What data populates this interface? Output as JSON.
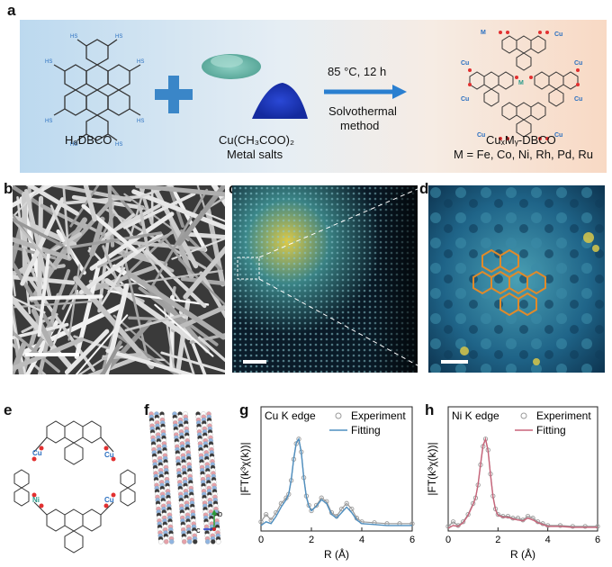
{
  "panels": {
    "a": {
      "label": "a",
      "reactant_name": "H₈DBCO",
      "metal_salt_1": "Cu(CH₃COO)₂",
      "metal_salt_2": "Metal salts",
      "condition_1": "85 °C,  12 h",
      "condition_2": "Solvothermal",
      "condition_3": "method",
      "product_name": "CuₓMᵧ-DBCO",
      "metals": "M = Fe, Co, Ni, Rh, Pd, Ru",
      "cu_label": "Cu",
      "m_label": "M",
      "hs_label": "HS"
    },
    "b": {
      "label": "b"
    },
    "c": {
      "label": "c"
    },
    "d": {
      "label": "d"
    },
    "e": {
      "label": "e",
      "cu_label": "Cu",
      "ni_label": "Ni"
    },
    "f": {
      "label": "f",
      "axis_b": "b",
      "axis_c": "c"
    },
    "g": {
      "label": "g"
    },
    "h": {
      "label": "h"
    }
  },
  "colors": {
    "cu_fit": "#4f8fc0",
    "ni_fit": "#c8647a",
    "experiment": "#9a9a9a",
    "arrow": "#2a7fd0",
    "plus": "#3a86c8"
  },
  "chart_data": [
    {
      "panel": "g",
      "type": "line",
      "title": "Cu K edge",
      "xlabel": "R (Å)",
      "ylabel": "|FT(k³χ(k))|",
      "xlim": [
        0,
        6
      ],
      "xticks": [
        0,
        2,
        4,
        6
      ],
      "legend": "top-right",
      "series": [
        {
          "name": "Experiment",
          "x": [
            0.0,
            0.2,
            0.4,
            0.6,
            0.8,
            1.0,
            1.1,
            1.2,
            1.3,
            1.4,
            1.5,
            1.6,
            1.7,
            1.8,
            1.9,
            2.0,
            2.2,
            2.4,
            2.6,
            2.8,
            3.0,
            3.2,
            3.4,
            3.6,
            3.8,
            4.0,
            4.5,
            5.0,
            5.5,
            6.0
          ],
          "y": [
            0.1,
            0.18,
            0.12,
            0.2,
            0.3,
            0.36,
            0.4,
            0.55,
            0.78,
            0.95,
            1.0,
            0.86,
            0.58,
            0.38,
            0.28,
            0.22,
            0.28,
            0.36,
            0.32,
            0.2,
            0.16,
            0.24,
            0.3,
            0.24,
            0.14,
            0.1,
            0.09,
            0.08,
            0.08,
            0.08
          ]
        },
        {
          "name": "Fitting",
          "x": [
            0.0,
            0.2,
            0.4,
            0.6,
            0.8,
            1.0,
            1.1,
            1.2,
            1.3,
            1.4,
            1.5,
            1.6,
            1.7,
            1.8,
            1.9,
            2.0,
            2.2,
            2.4,
            2.6,
            2.8,
            3.0,
            3.2,
            3.4,
            3.6,
            3.8,
            4.0,
            4.5,
            5.0,
            5.5,
            6.0
          ],
          "y": [
            0.06,
            0.1,
            0.08,
            0.16,
            0.26,
            0.34,
            0.4,
            0.56,
            0.79,
            0.96,
            1.0,
            0.85,
            0.57,
            0.37,
            0.27,
            0.22,
            0.27,
            0.34,
            0.3,
            0.18,
            0.14,
            0.2,
            0.26,
            0.2,
            0.12,
            0.08,
            0.07,
            0.06,
            0.06,
            0.06
          ]
        }
      ]
    },
    {
      "panel": "h",
      "type": "line",
      "title": "Ni K edge",
      "xlabel": "R (Å)",
      "ylabel": "|FT(k³χ(k))|",
      "xlim": [
        0,
        6
      ],
      "xticks": [
        0,
        2,
        4,
        6
      ],
      "legend": "top-right",
      "series": [
        {
          "name": "Experiment",
          "x": [
            0.0,
            0.2,
            0.4,
            0.6,
            0.8,
            1.0,
            1.1,
            1.2,
            1.3,
            1.4,
            1.5,
            1.6,
            1.7,
            1.8,
            1.9,
            2.0,
            2.2,
            2.4,
            2.6,
            2.8,
            3.0,
            3.2,
            3.4,
            3.6,
            3.8,
            4.0,
            4.5,
            5.0,
            5.5,
            6.0
          ],
          "y": [
            0.05,
            0.1,
            0.06,
            0.1,
            0.18,
            0.3,
            0.36,
            0.5,
            0.72,
            0.92,
            1.0,
            0.88,
            0.62,
            0.38,
            0.24,
            0.18,
            0.16,
            0.16,
            0.14,
            0.14,
            0.12,
            0.16,
            0.14,
            0.1,
            0.08,
            0.06,
            0.06,
            0.05,
            0.05,
            0.05
          ]
        },
        {
          "name": "Fitting",
          "x": [
            0.0,
            0.2,
            0.4,
            0.6,
            0.8,
            1.0,
            1.1,
            1.2,
            1.3,
            1.4,
            1.5,
            1.6,
            1.7,
            1.8,
            1.9,
            2.0,
            2.2,
            2.4,
            2.6,
            2.8,
            3.0,
            3.2,
            3.4,
            3.6,
            3.8,
            4.0,
            4.5,
            5.0,
            5.5,
            6.0
          ],
          "y": [
            0.03,
            0.06,
            0.05,
            0.09,
            0.17,
            0.29,
            0.36,
            0.51,
            0.73,
            0.93,
            1.0,
            0.87,
            0.61,
            0.37,
            0.23,
            0.17,
            0.15,
            0.15,
            0.13,
            0.12,
            0.11,
            0.14,
            0.12,
            0.09,
            0.07,
            0.05,
            0.05,
            0.04,
            0.04,
            0.04
          ]
        }
      ]
    }
  ]
}
